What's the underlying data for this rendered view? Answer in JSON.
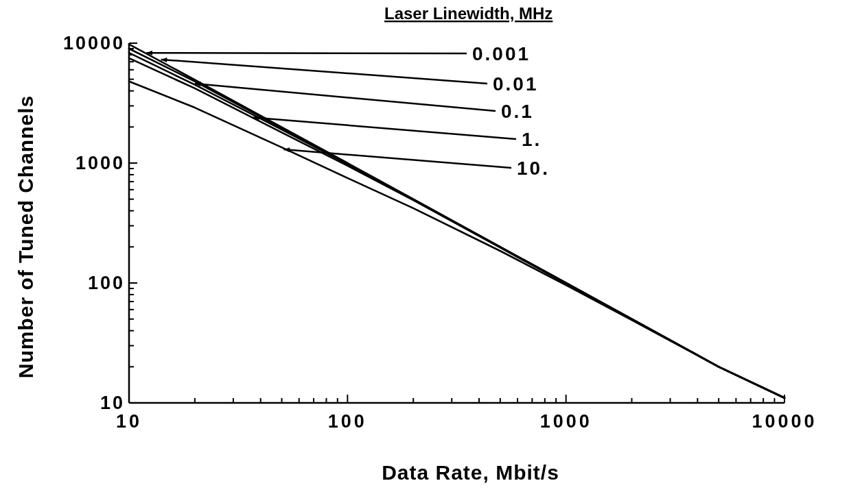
{
  "chart_data": {
    "type": "line",
    "xlabel": "Data Rate, Mbit/s",
    "ylabel": "Number of Tuned Channels",
    "legend_title": "Laser Linewidth, MHz",
    "log": "xy",
    "marker": "none",
    "line_style": "solid",
    "grid": false,
    "x": [
      10,
      20,
      50,
      100,
      200,
      500,
      1000,
      2000,
      5000,
      10000
    ],
    "series": [
      {
        "color": "#000000",
        "values": [
          9800,
          4950,
          1990,
          1000,
          500,
          200,
          100,
          50,
          20,
          11
        ]
      },
      {
        "color": "#000000",
        "values": [
          9000,
          4800,
          1960,
          990,
          498,
          200,
          100,
          50,
          20,
          11
        ]
      },
      {
        "color": "#000000",
        "values": [
          8300,
          4500,
          1900,
          980,
          495,
          199,
          100,
          50,
          20,
          11
        ]
      },
      {
        "color": "#000000",
        "values": [
          7500,
          4200,
          1800,
          950,
          490,
          197,
          99,
          50,
          20,
          11
        ]
      },
      {
        "color": "#000000",
        "values": [
          4800,
          2900,
          1350,
          750,
          420,
          185,
          96,
          49,
          20,
          11
        ]
      }
    ],
    "annotations": [
      {
        "text": "0.001",
        "x": 12,
        "y": 8300
      },
      {
        "text": "0.01",
        "x": 14,
        "y": 7300
      },
      {
        "text": "0.1",
        "x": 20,
        "y": 4600
      },
      {
        "text": "1.",
        "x": 37,
        "y": 2400
      },
      {
        "text": "10.",
        "x": 51,
        "y": 1300
      }
    ],
    "xlim": [
      10,
      10000
    ],
    "ylim": [
      10,
      10000
    ],
    "xticks": [
      10,
      {
        "value": 20,
        "label": null
      },
      {
        "value": 30,
        "label": null
      },
      {
        "value": 40,
        "label": null
      },
      {
        "value": 50,
        "label": null
      },
      {
        "value": 60,
        "label": null
      },
      {
        "value": 70,
        "label": null
      },
      {
        "value": 80,
        "label": null
      },
      {
        "value": 90,
        "label": null
      },
      100,
      {
        "value": 200,
        "label": null
      },
      {
        "value": 300,
        "label": null
      },
      {
        "value": 400,
        "label": null
      },
      {
        "value": 500,
        "label": null
      },
      {
        "value": 600,
        "label": null
      },
      {
        "value": 700,
        "label": null
      },
      {
        "value": 800,
        "label": null
      },
      {
        "value": 900,
        "label": null
      },
      1000,
      {
        "value": 2000,
        "label": null
      },
      {
        "value": 3000,
        "label": null
      },
      {
        "value": 4000,
        "label": null
      },
      {
        "value": 5000,
        "label": null
      },
      {
        "value": 6000,
        "label": null
      },
      {
        "value": 7000,
        "label": null
      },
      {
        "value": 8000,
        "label": null
      },
      {
        "value": 9000,
        "label": null
      },
      10000
    ],
    "yticks": [
      10,
      {
        "value": 20,
        "label": null
      },
      {
        "value": 30,
        "label": null
      },
      {
        "value": 40,
        "label": null
      },
      {
        "value": 50,
        "label": null
      },
      {
        "value": 60,
        "label": null
      },
      {
        "value": 70,
        "label": null
      },
      {
        "value": 80,
        "label": null
      },
      {
        "value": 90,
        "label": null
      },
      100,
      {
        "value": 200,
        "label": null
      },
      {
        "value": 300,
        "label": null
      },
      {
        "value": 400,
        "label": null
      },
      {
        "value": 500,
        "label": null
      },
      {
        "value": 600,
        "label": null
      },
      {
        "value": 700,
        "label": null
      },
      {
        "value": 800,
        "label": null
      },
      {
        "value": 900,
        "label": null
      },
      1000,
      {
        "value": 2000,
        "label": null
      },
      {
        "value": 3000,
        "label": null
      },
      {
        "value": 4000,
        "label": null
      },
      {
        "value": 5000,
        "label": null
      },
      {
        "value": 6000,
        "label": null
      },
      {
        "value": 7000,
        "label": null
      },
      {
        "value": 8000,
        "label": null
      },
      {
        "value": 9000,
        "label": null
      },
      10000
    ]
  }
}
